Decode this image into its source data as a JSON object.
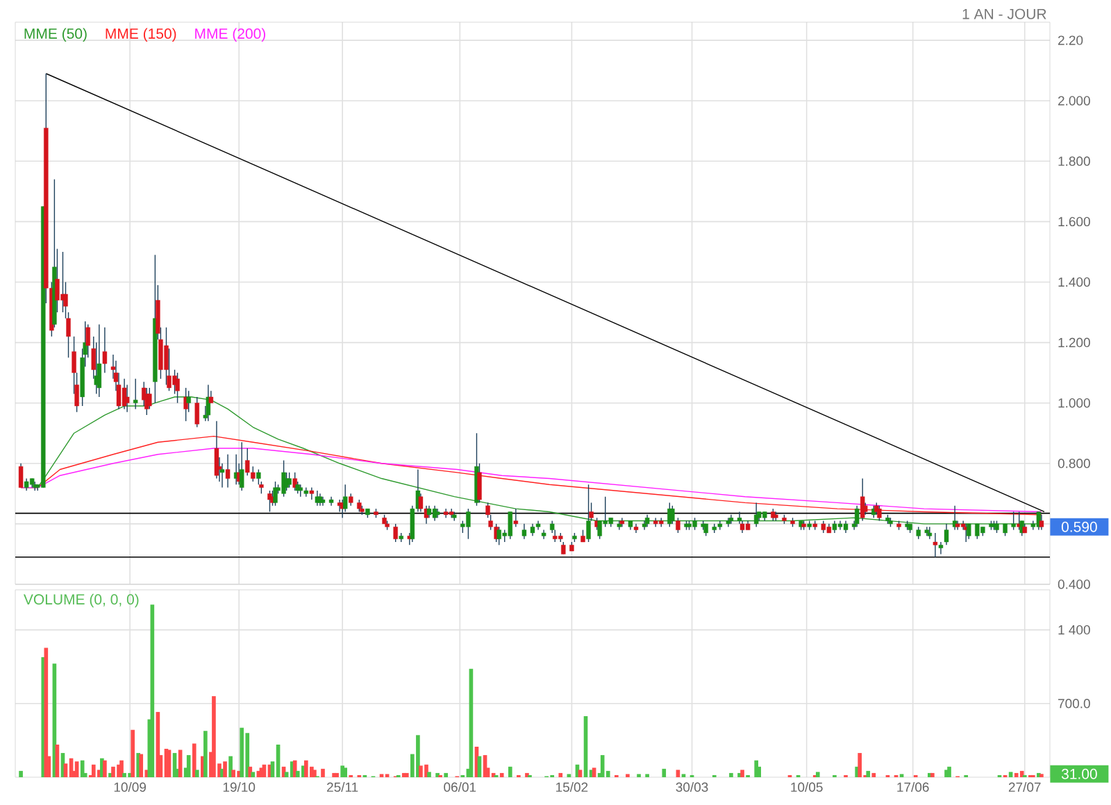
{
  "chart_data": [
    {
      "type": "candlestick",
      "subtitle": "1 AN - JOUR",
      "x": [
        "2010-08-02",
        "2010-08-04",
        "2010-08-06",
        "2010-08-07",
        "2010-08-08",
        "2010-08-10",
        "2010-08-11",
        "2010-08-13",
        "2010-08-14",
        "2010-08-15",
        "2010-08-17",
        "2010-08-18",
        "2010-08-19",
        "2010-08-21",
        "2010-08-22",
        "2010-08-24",
        "2010-08-25",
        "2010-08-26",
        "2010-08-28",
        "2010-08-29",
        "2010-08-30",
        "2010-09-01",
        "2010-09-04",
        "2010-09-05",
        "2010-09-06",
        "2010-09-08",
        "2010-09-09",
        "2010-09-12",
        "2010-09-15",
        "2010-09-16",
        "2010-09-17",
        "2010-09-19",
        "2010-09-20",
        "2010-09-21",
        "2010-09-23",
        "2010-09-24",
        "2010-09-26",
        "2010-09-27",
        "2010-09-30",
        "2010-10-01",
        "2010-10-04",
        "2010-10-07",
        "2010-10-08",
        "2010-10-09",
        "2010-10-11",
        "2010-10-12",
        "2010-10-13",
        "2010-10-15",
        "2010-10-18",
        "2010-10-19",
        "2010-10-20",
        "2010-10-22",
        "2010-10-24",
        "2010-10-26",
        "2010-10-27",
        "2010-10-30",
        "2010-10-31",
        "2010-11-01",
        "2010-11-02",
        "2010-11-04",
        "2010-11-05",
        "2010-11-06",
        "2010-11-08",
        "2010-11-09",
        "2010-11-10",
        "2010-11-12",
        "2010-11-14",
        "2010-11-16",
        "2010-11-17",
        "2010-11-18",
        "2010-11-21",
        "2010-11-24",
        "2010-11-25",
        "2010-11-26",
        "2010-11-28",
        "2010-12-01",
        "2010-12-02",
        "2010-12-04",
        "2010-12-07",
        "2010-12-10",
        "2010-12-11",
        "2010-12-14",
        "2010-12-16",
        "2010-12-19",
        "2010-12-20",
        "2010-12-22",
        "2010-12-23",
        "2010-12-25",
        "2010-12-26",
        "2010-12-28",
        "2010-12-29",
        "2011-01-01",
        "2011-01-03",
        "2011-01-04",
        "2011-01-07",
        "2011-01-09",
        "2011-01-12",
        "2011-01-13",
        "2011-01-16",
        "2011-01-17",
        "2011-01-19",
        "2011-01-20",
        "2011-01-22",
        "2011-01-24",
        "2011-01-26",
        "2011-01-29",
        "2011-02-01",
        "2011-02-03",
        "2011-02-05",
        "2011-02-08",
        "2011-02-09",
        "2011-02-11",
        "2011-02-12",
        "2011-02-15",
        "2011-02-16",
        "2011-02-19",
        "2011-02-21",
        "2011-02-22",
        "2011-02-24",
        "2011-02-25",
        "2011-02-27",
        "2011-03-01",
        "2011-03-04",
        "2011-03-05",
        "2011-03-08",
        "2011-03-10",
        "2011-03-13",
        "2011-03-14",
        "2011-03-17",
        "2011-03-19",
        "2011-03-22",
        "2011-03-23",
        "2011-03-25",
        "2011-03-28",
        "2011-03-29",
        "2011-03-31",
        "2011-04-03",
        "2011-04-04",
        "2011-04-07",
        "2011-04-09",
        "2011-04-12",
        "2011-04-13",
        "2011-04-16",
        "2011-04-17",
        "2011-04-19",
        "2011-04-22",
        "2011-04-23",
        "2011-04-25",
        "2011-04-28",
        "2011-04-29",
        "2011-05-02",
        "2011-05-05",
        "2011-05-08",
        "2011-05-09",
        "2011-05-11",
        "2011-05-13",
        "2011-05-16",
        "2011-05-18",
        "2011-05-20",
        "2011-05-22",
        "2011-05-24",
        "2011-05-27",
        "2011-05-28",
        "2011-05-30",
        "2011-05-31",
        "2011-06-03",
        "2011-06-04",
        "2011-06-05",
        "2011-06-08",
        "2011-06-09",
        "2011-06-12",
        "2011-06-15",
        "2011-06-16",
        "2011-06-19",
        "2011-06-22",
        "2011-06-23",
        "2011-06-25",
        "2011-06-27",
        "2011-06-29",
        "2011-07-02",
        "2011-07-03",
        "2011-07-05",
        "2011-07-06",
        "2011-07-07",
        "2011-07-10",
        "2011-07-12",
        "2011-07-15",
        "2011-07-16",
        "2011-07-17",
        "2011-07-20",
        "2011-07-23",
        "2011-07-25",
        "2011-07-26",
        "2011-07-27",
        "2011-07-30",
        "2011-08-01",
        "2011-08-02"
      ],
      "ohlc": [
        [
          0.79,
          0.8,
          0.72,
          0.72
        ],
        [
          0.72,
          0.75,
          0.71,
          0.74
        ],
        [
          0.73,
          0.75,
          0.72,
          0.75
        ],
        [
          0.72,
          0.74,
          0.71,
          0.73
        ],
        [
          0.72,
          0.73,
          0.71,
          0.73
        ],
        [
          0.72,
          1.65,
          0.72,
          1.65
        ],
        [
          1.91,
          2.09,
          1.33,
          1.38
        ],
        [
          1.38,
          1.4,
          1.22,
          1.24
        ],
        [
          1.26,
          1.74,
          1.25,
          1.45
        ],
        [
          1.41,
          1.51,
          1.3,
          1.34
        ],
        [
          1.36,
          1.5,
          1.3,
          1.34
        ],
        [
          1.36,
          1.4,
          1.28,
          1.32
        ],
        [
          1.28,
          1.3,
          1.15,
          1.22
        ],
        [
          1.17,
          1.22,
          1.03,
          1.1
        ],
        [
          1.06,
          1.1,
          0.97,
          0.99
        ],
        [
          1.02,
          1.18,
          0.99,
          1.15
        ],
        [
          1.16,
          1.27,
          1.12,
          1.2
        ],
        [
          1.25,
          1.26,
          1.15,
          1.19
        ],
        [
          1.18,
          1.22,
          1.08,
          1.11
        ],
        [
          1.06,
          1.2,
          1.03,
          1.09
        ],
        [
          1.05,
          1.26,
          1.02,
          1.13
        ],
        [
          1.17,
          1.25,
          1.1,
          1.13
        ],
        [
          1.12,
          1.16,
          1.08,
          1.11
        ],
        [
          1.1,
          1.14,
          1.04,
          1.07
        ],
        [
          1.06,
          1.1,
          0.98,
          0.99
        ],
        [
          1.05,
          1.08,
          0.98,
          0.99
        ],
        [
          1.02,
          1.06,
          0.97,
          1.0
        ],
        [
          1.0,
          1.08,
          0.98,
          1.01
        ],
        [
          1.05,
          1.07,
          0.99,
          1.01
        ],
        [
          1.03,
          1.05,
          0.96,
          0.98
        ],
        [
          1.03,
          1.05,
          0.98,
          0.99
        ],
        [
          1.07,
          1.49,
          1.0,
          1.28
        ],
        [
          1.34,
          1.39,
          1.21,
          1.23
        ],
        [
          1.21,
          1.25,
          1.08,
          1.11
        ],
        [
          1.19,
          1.25,
          1.06,
          1.11
        ],
        [
          1.09,
          1.18,
          1.04,
          1.05
        ],
        [
          1.09,
          1.11,
          1.03,
          1.06
        ],
        [
          1.08,
          1.1,
          1.0,
          1.04
        ],
        [
          1.02,
          1.05,
          0.94,
          0.98
        ],
        [
          1.0,
          1.04,
          0.97,
          1.02
        ],
        [
          1.0,
          1.02,
          0.92,
          0.93
        ],
        [
          0.95,
          0.99,
          0.94,
          0.96
        ],
        [
          0.96,
          1.06,
          0.94,
          1.02
        ],
        [
          1.02,
          1.04,
          1.0,
          1.0
        ],
        [
          0.85,
          0.94,
          0.75,
          0.76
        ],
        [
          0.79,
          0.82,
          0.74,
          0.78
        ],
        [
          0.77,
          0.8,
          0.72,
          0.78
        ],
        [
          0.78,
          0.83,
          0.72,
          0.75
        ],
        [
          0.75,
          0.83,
          0.73,
          0.77
        ],
        [
          0.77,
          0.8,
          0.73,
          0.74
        ],
        [
          0.72,
          0.87,
          0.71,
          0.78
        ],
        [
          0.81,
          0.85,
          0.76,
          0.77
        ],
        [
          0.77,
          0.79,
          0.74,
          0.75
        ],
        [
          0.75,
          0.78,
          0.73,
          0.77
        ],
        [
          0.73,
          0.74,
          0.7,
          0.72
        ],
        [
          0.7,
          0.71,
          0.64,
          0.68
        ],
        [
          0.69,
          0.71,
          0.66,
          0.67
        ],
        [
          0.67,
          0.74,
          0.66,
          0.72
        ],
        [
          0.71,
          0.73,
          0.7,
          0.72
        ],
        [
          0.7,
          0.81,
          0.69,
          0.77
        ],
        [
          0.72,
          0.77,
          0.71,
          0.75
        ],
        [
          0.73,
          0.77,
          0.72,
          0.75
        ],
        [
          0.75,
          0.77,
          0.71,
          0.72
        ],
        [
          0.71,
          0.74,
          0.7,
          0.73
        ],
        [
          0.71,
          0.73,
          0.69,
          0.72
        ],
        [
          0.7,
          0.72,
          0.69,
          0.71
        ],
        [
          0.71,
          0.72,
          0.68,
          0.7
        ],
        [
          0.67,
          0.71,
          0.66,
          0.69
        ],
        [
          0.67,
          0.7,
          0.66,
          0.69
        ],
        [
          0.67,
          0.69,
          0.66,
          0.68
        ],
        [
          0.67,
          0.69,
          0.66,
          0.68
        ],
        [
          0.67,
          0.68,
          0.64,
          0.66
        ],
        [
          0.67,
          0.68,
          0.62,
          0.65
        ],
        [
          0.65,
          0.73,
          0.64,
          0.69
        ],
        [
          0.69,
          0.7,
          0.66,
          0.67
        ],
        [
          0.67,
          0.68,
          0.64,
          0.65
        ],
        [
          0.65,
          0.66,
          0.63,
          0.64
        ],
        [
          0.63,
          0.65,
          0.62,
          0.65
        ],
        [
          0.64,
          0.65,
          0.62,
          0.63
        ],
        [
          0.62,
          0.63,
          0.6,
          0.6
        ],
        [
          0.6,
          0.61,
          0.58,
          0.59
        ],
        [
          0.59,
          0.6,
          0.54,
          0.55
        ],
        [
          0.55,
          0.57,
          0.54,
          0.56
        ],
        [
          0.56,
          0.57,
          0.53,
          0.55
        ],
        [
          0.55,
          0.66,
          0.54,
          0.65
        ],
        [
          0.65,
          0.78,
          0.64,
          0.71
        ],
        [
          0.69,
          0.7,
          0.64,
          0.65
        ],
        [
          0.65,
          0.66,
          0.6,
          0.62
        ],
        [
          0.63,
          0.66,
          0.62,
          0.65
        ],
        [
          0.62,
          0.66,
          0.61,
          0.65
        ],
        [
          0.63,
          0.65,
          0.62,
          0.64
        ],
        [
          0.64,
          0.65,
          0.62,
          0.63
        ],
        [
          0.64,
          0.65,
          0.62,
          0.63
        ],
        [
          0.62,
          0.64,
          0.61,
          0.63
        ],
        [
          0.59,
          0.61,
          0.57,
          0.6
        ],
        [
          0.59,
          0.65,
          0.55,
          0.64
        ],
        [
          0.67,
          0.9,
          0.66,
          0.79
        ],
        [
          0.77,
          0.8,
          0.67,
          0.68
        ],
        [
          0.66,
          0.67,
          0.62,
          0.63
        ],
        [
          0.61,
          0.63,
          0.58,
          0.59
        ],
        [
          0.59,
          0.6,
          0.54,
          0.55
        ],
        [
          0.55,
          0.59,
          0.53,
          0.58
        ],
        [
          0.56,
          0.58,
          0.54,
          0.57
        ],
        [
          0.56,
          0.64,
          0.55,
          0.64
        ],
        [
          0.61,
          0.65,
          0.59,
          0.6
        ],
        [
          0.56,
          0.6,
          0.55,
          0.58
        ],
        [
          0.57,
          0.6,
          0.56,
          0.59
        ],
        [
          0.59,
          0.61,
          0.58,
          0.6
        ],
        [
          0.56,
          0.58,
          0.55,
          0.57
        ],
        [
          0.58,
          0.61,
          0.57,
          0.6
        ],
        [
          0.56,
          0.58,
          0.54,
          0.55
        ],
        [
          0.56,
          0.57,
          0.54,
          0.55
        ],
        [
          0.53,
          0.54,
          0.5,
          0.5
        ],
        [
          0.53,
          0.54,
          0.51,
          0.51
        ],
        [
          0.55,
          0.57,
          0.54,
          0.56
        ],
        [
          0.56,
          0.58,
          0.54,
          0.54
        ],
        [
          0.55,
          0.73,
          0.54,
          0.61
        ],
        [
          0.64,
          0.67,
          0.61,
          0.62
        ],
        [
          0.61,
          0.62,
          0.58,
          0.59
        ],
        [
          0.56,
          0.61,
          0.55,
          0.61
        ],
        [
          0.6,
          0.69,
          0.59,
          0.61
        ],
        [
          0.6,
          0.62,
          0.59,
          0.62
        ],
        [
          0.59,
          0.61,
          0.58,
          0.6
        ],
        [
          0.61,
          0.62,
          0.59,
          0.6
        ],
        [
          0.59,
          0.61,
          0.58,
          0.61
        ],
        [
          0.59,
          0.6,
          0.57,
          0.58
        ],
        [
          0.59,
          0.61,
          0.58,
          0.6
        ],
        [
          0.6,
          0.63,
          0.59,
          0.62
        ],
        [
          0.61,
          0.62,
          0.59,
          0.6
        ],
        [
          0.61,
          0.62,
          0.59,
          0.6
        ],
        [
          0.6,
          0.67,
          0.59,
          0.65
        ],
        [
          0.61,
          0.66,
          0.6,
          0.65
        ],
        [
          0.61,
          0.62,
          0.57,
          0.58
        ],
        [
          0.59,
          0.61,
          0.58,
          0.6
        ],
        [
          0.59,
          0.61,
          0.58,
          0.6
        ],
        [
          0.59,
          0.62,
          0.58,
          0.61
        ],
        [
          0.59,
          0.61,
          0.58,
          0.6
        ],
        [
          0.57,
          0.6,
          0.56,
          0.6
        ],
        [
          0.58,
          0.6,
          0.57,
          0.59
        ],
        [
          0.59,
          0.61,
          0.58,
          0.6
        ],
        [
          0.6,
          0.62,
          0.59,
          0.61
        ],
        [
          0.61,
          0.63,
          0.6,
          0.62
        ],
        [
          0.61,
          0.64,
          0.6,
          0.62
        ],
        [
          0.6,
          0.61,
          0.57,
          0.58
        ],
        [
          0.6,
          0.61,
          0.58,
          0.58
        ],
        [
          0.6,
          0.67,
          0.59,
          0.63
        ],
        [
          0.62,
          0.64,
          0.61,
          0.64
        ],
        [
          0.62,
          0.64,
          0.61,
          0.64
        ],
        [
          0.64,
          0.65,
          0.61,
          0.62
        ],
        [
          0.63,
          0.64,
          0.61,
          0.62
        ],
        [
          0.62,
          0.63,
          0.6,
          0.61
        ],
        [
          0.61,
          0.62,
          0.59,
          0.6
        ],
        [
          0.59,
          0.61,
          0.58,
          0.61
        ],
        [
          0.6,
          0.61,
          0.58,
          0.59
        ],
        [
          0.59,
          0.61,
          0.58,
          0.6
        ],
        [
          0.6,
          0.61,
          0.58,
          0.59
        ],
        [
          0.6,
          0.61,
          0.57,
          0.58
        ],
        [
          0.59,
          0.6,
          0.57,
          0.57
        ],
        [
          0.58,
          0.61,
          0.57,
          0.6
        ],
        [
          0.59,
          0.61,
          0.58,
          0.6
        ],
        [
          0.58,
          0.61,
          0.57,
          0.6
        ],
        [
          0.59,
          0.61,
          0.58,
          0.6
        ],
        [
          0.6,
          0.66,
          0.59,
          0.65
        ],
        [
          0.69,
          0.75,
          0.61,
          0.62
        ],
        [
          0.66,
          0.67,
          0.63,
          0.64
        ],
        [
          0.63,
          0.66,
          0.62,
          0.65
        ],
        [
          0.66,
          0.67,
          0.63,
          0.64
        ],
        [
          0.65,
          0.66,
          0.61,
          0.62
        ],
        [
          0.61,
          0.63,
          0.6,
          0.62
        ],
        [
          0.6,
          0.62,
          0.59,
          0.61
        ],
        [
          0.6,
          0.61,
          0.58,
          0.59
        ],
        [
          0.59,
          0.61,
          0.58,
          0.6
        ],
        [
          0.58,
          0.6,
          0.57,
          0.6
        ],
        [
          0.56,
          0.59,
          0.55,
          0.58
        ],
        [
          0.57,
          0.59,
          0.56,
          0.58
        ],
        [
          0.56,
          0.59,
          0.55,
          0.57
        ],
        [
          0.54,
          0.57,
          0.49,
          0.53
        ],
        [
          0.52,
          0.54,
          0.5,
          0.53
        ],
        [
          0.54,
          0.6,
          0.53,
          0.58
        ],
        [
          0.59,
          0.66,
          0.58,
          0.61
        ],
        [
          0.6,
          0.61,
          0.58,
          0.59
        ],
        [
          0.6,
          0.61,
          0.58,
          0.59
        ],
        [
          0.59,
          0.6,
          0.54,
          0.58
        ],
        [
          0.56,
          0.6,
          0.55,
          0.6
        ],
        [
          0.56,
          0.6,
          0.55,
          0.6
        ],
        [
          0.57,
          0.59,
          0.56,
          0.59
        ],
        [
          0.59,
          0.61,
          0.58,
          0.6
        ],
        [
          0.59,
          0.61,
          0.58,
          0.6
        ],
        [
          0.58,
          0.61,
          0.57,
          0.6
        ],
        [
          0.57,
          0.6,
          0.56,
          0.6
        ],
        [
          0.59,
          0.64,
          0.58,
          0.6
        ],
        [
          0.6,
          0.64,
          0.58,
          0.59
        ],
        [
          0.57,
          0.61,
          0.56,
          0.61
        ],
        [
          0.59,
          0.6,
          0.57,
          0.57
        ],
        [
          0.59,
          0.61,
          0.58,
          0.6
        ],
        [
          0.59,
          0.64,
          0.58,
          0.64
        ],
        [
          0.61,
          0.63,
          0.58,
          0.59
        ]
      ],
      "colors": [
        "#d4141c",
        "#1a8f1a",
        "#1a8f1a",
        "#1a8f1a",
        "#1a8f1a",
        "#1a8f1a",
        "#d4141c",
        "#d4141c",
        "#1a8f1a",
        "#d4141c",
        "#d4141c",
        "#d4141c",
        "#d4141c",
        "#d4141c",
        "#d4141c",
        "#1a8f1a",
        "#1a8f1a",
        "#d4141c",
        "#d4141c",
        "#1a8f1a",
        "#1a8f1a",
        "#d4141c",
        "#d4141c",
        "#d4141c",
        "#d4141c",
        "#d4141c",
        "#d4141c",
        "#1a8f1a",
        "#d4141c",
        "#d4141c",
        "#d4141c",
        "#1a8f1a",
        "#d4141c",
        "#d4141c",
        "#d4141c",
        "#d4141c",
        "#d4141c",
        "#d4141c",
        "#d4141c",
        "#1a8f1a",
        "#d4141c",
        "#1a8f1a",
        "#1a8f1a",
        "#d4141c",
        "#d4141c",
        "#d4141c",
        "#1a8f1a",
        "#d4141c",
        "#1a8f1a",
        "#d4141c",
        "#1a8f1a",
        "#d4141c",
        "#d4141c",
        "#1a8f1a",
        "#d4141c",
        "#d4141c",
        "#d4141c",
        "#1a8f1a",
        "#1a8f1a",
        "#1a8f1a",
        "#1a8f1a",
        "#1a8f1a",
        "#d4141c",
        "#1a8f1a",
        "#1a8f1a",
        "#1a8f1a",
        "#d4141c",
        "#1a8f1a",
        "#1a8f1a",
        "#1a8f1a",
        "#1a8f1a",
        "#d4141c",
        "#d4141c",
        "#1a8f1a",
        "#d4141c",
        "#d4141c",
        "#d4141c",
        "#1a8f1a",
        "#d4141c",
        "#d4141c",
        "#d4141c",
        "#d4141c",
        "#1a8f1a",
        "#d4141c",
        "#1a8f1a",
        "#1a8f1a",
        "#d4141c",
        "#d4141c",
        "#1a8f1a",
        "#1a8f1a",
        "#1a8f1a",
        "#d4141c",
        "#d4141c",
        "#1a8f1a",
        "#1a8f1a",
        "#1a8f1a",
        "#1a8f1a",
        "#d4141c",
        "#d4141c",
        "#d4141c",
        "#d4141c",
        "#1a8f1a",
        "#1a8f1a",
        "#1a8f1a",
        "#d4141c",
        "#1a8f1a",
        "#1a8f1a",
        "#1a8f1a",
        "#1a8f1a",
        "#1a8f1a",
        "#d4141c",
        "#d4141c",
        "#d4141c",
        "#d4141c",
        "#1a8f1a",
        "#d4141c",
        "#1a8f1a",
        "#d4141c",
        "#d4141c",
        "#1a8f1a",
        "#1a8f1a",
        "#1a8f1a",
        "#1a8f1a",
        "#d4141c",
        "#1a8f1a",
        "#d4141c",
        "#1a8f1a",
        "#1a8f1a",
        "#d4141c",
        "#d4141c",
        "#1a8f1a",
        "#1a8f1a",
        "#d4141c",
        "#1a8f1a",
        "#1a8f1a",
        "#1a8f1a",
        "#1a8f1a",
        "#1a8f1a",
        "#1a8f1a",
        "#1a8f1a",
        "#1a8f1a",
        "#1a8f1a",
        "#1a8f1a",
        "#d4141c",
        "#d4141c",
        "#1a8f1a",
        "#1a8f1a",
        "#1a8f1a",
        "#d4141c",
        "#d4141c",
        "#d4141c",
        "#d4141c",
        "#1a8f1a",
        "#d4141c",
        "#1a8f1a",
        "#d4141c",
        "#d4141c",
        "#d4141c",
        "#1a8f1a",
        "#1a8f1a",
        "#1a8f1a",
        "#1a8f1a",
        "#1a8f1a",
        "#d4141c",
        "#d4141c",
        "#1a8f1a",
        "#d4141c",
        "#d4141c",
        "#1a8f1a",
        "#1a8f1a",
        "#d4141c",
        "#1a8f1a",
        "#1a8f1a",
        "#1a8f1a",
        "#1a8f1a",
        "#1a8f1a",
        "#d4141c",
        "#1a8f1a",
        "#1a8f1a",
        "#1a8f1a",
        "#d4141c",
        "#d4141c",
        "#d4141c",
        "#1a8f1a",
        "#1a8f1a",
        "#1a8f1a",
        "#1a8f1a",
        "#1a8f1a",
        "#1a8f1a",
        "#1a8f1a",
        "#1a8f1a",
        "#d4141c",
        "#1a8f1a",
        "#d4141c",
        "#1a8f1a",
        "#1a8f1a",
        "#d4141c"
      ],
      "series": [
        {
          "name": "MME (50)",
          "type": "line",
          "color": "#2e9a2e",
          "x": [
            "2010-08-02",
            "2010-08-08",
            "2010-08-11",
            "2010-08-21",
            "2010-09-01",
            "2010-09-08",
            "2010-09-16",
            "2010-09-19",
            "2010-09-26",
            "2010-10-02",
            "2010-10-09",
            "2010-10-15",
            "2010-10-24",
            "2010-11-02",
            "2010-11-11",
            "2010-11-24",
            "2010-12-09",
            "2010-12-22",
            "2011-01-04",
            "2011-01-15",
            "2011-01-26",
            "2011-02-07",
            "2011-02-24",
            "2011-04-01",
            "2011-05-05",
            "2011-05-27",
            "2011-06-21",
            "2011-07-08",
            "2011-08-02"
          ],
          "values": [
            0.72,
            0.72,
            0.76,
            0.9,
            0.96,
            0.99,
            0.99,
            1.0,
            1.02,
            1.02,
            1.01,
            0.98,
            0.92,
            0.88,
            0.85,
            0.8,
            0.75,
            0.72,
            0.69,
            0.67,
            0.65,
            0.64,
            0.61,
            0.61,
            0.61,
            0.62,
            0.6,
            0.6,
            0.6
          ]
        },
        {
          "name": "MME (150)",
          "type": "line",
          "color": "#ff2020",
          "x": [
            "2010-08-02",
            "2010-08-08",
            "2010-08-16",
            "2010-09-04",
            "2010-09-20",
            "2010-10-10",
            "2010-10-24",
            "2010-11-14",
            "2010-12-09",
            "2011-01-05",
            "2011-01-21",
            "2011-02-07",
            "2011-03-14",
            "2011-04-18",
            "2011-05-21",
            "2011-06-21",
            "2011-08-02"
          ],
          "values": [
            0.72,
            0.72,
            0.78,
            0.83,
            0.87,
            0.89,
            0.87,
            0.84,
            0.8,
            0.77,
            0.75,
            0.73,
            0.7,
            0.67,
            0.65,
            0.64,
            0.63
          ]
        },
        {
          "name": "MME (200)",
          "type": "line",
          "color": "#ff20ff",
          "x": [
            "2010-08-02",
            "2010-08-08",
            "2010-08-16",
            "2010-09-04",
            "2010-09-20",
            "2010-10-10",
            "2010-10-24",
            "2010-11-14",
            "2010-12-09",
            "2011-01-05",
            "2011-01-21",
            "2011-02-07",
            "2011-03-14",
            "2011-04-18",
            "2011-05-21",
            "2011-06-21",
            "2011-08-02"
          ],
          "values": [
            0.72,
            0.72,
            0.76,
            0.8,
            0.83,
            0.85,
            0.85,
            0.83,
            0.8,
            0.78,
            0.76,
            0.75,
            0.72,
            0.69,
            0.67,
            0.65,
            0.64
          ]
        },
        {
          "type": "line",
          "color": "#000000",
          "x": [
            "2010-08-11",
            "2011-08-03"
          ],
          "values": [
            2.09,
            0.64
          ]
        }
      ],
      "ref_lines": [
        {
          "axis": "y",
          "value": 0.635,
          "color": "#000000"
        },
        {
          "axis": "y",
          "value": 0.49,
          "color": "#000000"
        }
      ],
      "annotations": [
        "0.590"
      ],
      "xlim": [
        "2010-07-31",
        "2011-08-05"
      ],
      "xticks": [
        "2010-09-10",
        "2010-10-19",
        "2010-11-25",
        "2011-01-06",
        "2011-02-15",
        "2011-03-30",
        "2011-05-10",
        "2011-06-17",
        "2011-07-27"
      ],
      "ylim": [
        0.4,
        2.26
      ],
      "yticks": [
        {
          "value": 2.2,
          "label": "2.20"
        },
        {
          "value": 2.0,
          "label": "2.000"
        },
        {
          "value": 1.8,
          "label": "1.800"
        },
        {
          "value": 1.6,
          "label": "1.600"
        },
        {
          "value": 1.4,
          "label": "1.400"
        },
        {
          "value": 1.2,
          "label": "1.200"
        },
        {
          "value": 1.0,
          "label": "1.000"
        },
        {
          "value": 0.8,
          "label": "0.800"
        },
        {
          "value": 0.6,
          "label": null
        },
        {
          "value": 0.4,
          "label": "0.400"
        }
      ],
      "tick_labels": "y",
      "grid": true,
      "legend": "top left"
    },
    {
      "type": "bar",
      "title": "VOLUME (0, 0, 0)",
      "x": [
        "2010-08-02",
        "2010-08-10",
        "2010-08-11",
        "2010-08-12",
        "2010-08-14",
        "2010-08-15",
        "2010-08-17",
        "2010-08-18",
        "2010-08-20",
        "2010-08-21",
        "2010-08-22",
        "2010-08-24",
        "2010-08-25",
        "2010-08-27",
        "2010-08-28",
        "2010-08-30",
        "2010-08-31",
        "2010-09-01",
        "2010-09-03",
        "2010-09-04",
        "2010-09-06",
        "2010-09-07",
        "2010-09-08",
        "2010-09-10",
        "2010-09-11",
        "2010-09-13",
        "2010-09-14",
        "2010-09-16",
        "2010-09-17",
        "2010-09-18",
        "2010-09-20",
        "2010-09-21",
        "2010-09-23",
        "2010-09-24",
        "2010-09-26",
        "2010-09-27",
        "2010-09-28",
        "2010-09-30",
        "2010-10-01",
        "2010-10-03",
        "2010-10-04",
        "2010-10-06",
        "2010-10-07",
        "2010-10-09",
        "2010-10-10",
        "2010-10-12",
        "2010-10-13",
        "2010-10-14",
        "2010-10-16",
        "2010-10-17",
        "2010-10-19",
        "2010-10-20",
        "2010-10-22",
        "2010-10-23",
        "2010-10-24",
        "2010-10-26",
        "2010-10-27",
        "2010-10-28",
        "2010-10-30",
        "2010-10-31",
        "2010-11-02",
        "2010-11-04",
        "2010-11-05",
        "2010-11-07",
        "2010-11-08",
        "2010-11-09",
        "2010-11-11",
        "2010-11-12",
        "2010-11-14",
        "2010-11-15",
        "2010-11-16",
        "2010-11-18",
        "2010-11-22",
        "2010-11-23",
        "2010-11-25",
        "2010-11-26",
        "2010-11-28",
        "2010-12-01",
        "2010-12-03",
        "2010-12-06",
        "2010-12-09",
        "2010-12-11",
        "2010-12-14",
        "2010-12-15",
        "2010-12-17",
        "2010-12-18",
        "2010-12-20",
        "2010-12-22",
        "2010-12-23",
        "2010-12-25",
        "2010-12-26",
        "2010-12-29",
        "2010-12-30",
        "2011-01-01",
        "2011-01-05",
        "2011-01-07",
        "2011-01-09",
        "2011-01-10",
        "2011-01-12",
        "2011-01-13",
        "2011-01-15",
        "2011-01-16",
        "2011-01-18",
        "2011-01-19",
        "2011-01-21",
        "2011-01-24",
        "2011-01-27",
        "2011-01-30",
        "2011-01-31",
        "2011-02-06",
        "2011-02-08",
        "2011-02-11",
        "2011-02-14",
        "2011-02-17",
        "2011-02-18",
        "2011-02-20",
        "2011-02-22",
        "2011-02-23",
        "2011-02-25",
        "2011-02-26",
        "2011-02-28",
        "2011-03-03",
        "2011-03-07",
        "2011-03-11",
        "2011-03-14",
        "2011-03-20",
        "2011-03-25",
        "2011-03-27",
        "2011-03-30",
        "2011-04-07",
        "2011-04-13",
        "2011-04-16",
        "2011-04-17",
        "2011-04-19",
        "2011-04-22",
        "2011-04-23",
        "2011-05-04",
        "2011-05-07",
        "2011-05-13",
        "2011-05-14",
        "2011-05-20",
        "2011-05-24",
        "2011-05-28",
        "2011-05-29",
        "2011-05-31",
        "2011-06-01",
        "2011-06-03",
        "2011-06-08",
        "2011-06-11",
        "2011-06-13",
        "2011-06-18",
        "2011-06-23",
        "2011-06-24",
        "2011-06-29",
        "2011-06-30",
        "2011-07-03",
        "2011-07-06",
        "2011-07-18",
        "2011-07-20",
        "2011-07-22",
        "2011-07-24",
        "2011-07-26",
        "2011-07-27",
        "2011-07-29",
        "2011-07-30",
        "2011-08-01",
        "2011-08-02"
      ],
      "values": [
        60,
        1140,
        1230,
        200,
        1080,
        310,
        230,
        130,
        180,
        60,
        150,
        160,
        40,
        20,
        120,
        70,
        180,
        160,
        40,
        100,
        120,
        160,
        40,
        40,
        450,
        230,
        220,
        70,
        550,
        1640,
        620,
        210,
        270,
        260,
        230,
        80,
        260,
        90,
        210,
        320,
        70,
        200,
        440,
        240,
        770,
        130,
        80,
        150,
        200,
        70,
        60,
        470,
        420,
        100,
        50,
        60,
        90,
        120,
        120,
        150,
        310,
        100,
        50,
        150,
        160,
        60,
        110,
        160,
        100,
        70,
        10,
        80,
        40,
        40,
        110,
        90,
        20,
        20,
        20,
        10,
        30,
        30,
        10,
        20,
        40,
        40,
        220,
        400,
        110,
        120,
        50,
        40,
        20,
        40,
        10,
        20,
        80,
        1030,
        290,
        200,
        210,
        90,
        40,
        20,
        40,
        100,
        20,
        40,
        20,
        10,
        20,
        40,
        30,
        120,
        70,
        580,
        70,
        90,
        40,
        210,
        60,
        20,
        30,
        30,
        30,
        80,
        70,
        30,
        20,
        20,
        40,
        40,
        70,
        20,
        160,
        100,
        20,
        20,
        20,
        50,
        20,
        20,
        100,
        230,
        20,
        60,
        40,
        20,
        20,
        30,
        20,
        40,
        40,
        70,
        100,
        10,
        20,
        20,
        20,
        50,
        40,
        60,
        20,
        20,
        20,
        40,
        31
      ],
      "colors": [
        "#4cc44c",
        "#4cc44c",
        "#ff4c4c",
        "#ff4c4c",
        "#4cc44c",
        "#ff4c4c",
        "#4cc44c",
        "#ff4c4c",
        "#ff4c4c",
        "#ff4c4c",
        "#ff4c4c",
        "#4cc44c",
        "#4cc44c",
        "#ff4c4c",
        "#ff4c4c",
        "#ff4c4c",
        "#4cc44c",
        "#ff4c4c",
        "#4cc44c",
        "#ff4c4c",
        "#ff4c4c",
        "#ff4c4c",
        "#4cc44c",
        "#4cc44c",
        "#ff4c4c",
        "#4cc44c",
        "#ff4c4c",
        "#ff4c4c",
        "#4cc44c",
        "#4cc44c",
        "#ff4c4c",
        "#ff4c4c",
        "#ff4c4c",
        "#ff4c4c",
        "#4cc44c",
        "#4cc44c",
        "#ff4c4c",
        "#4cc44c",
        "#4cc44c",
        "#ff4c4c",
        "#4cc44c",
        "#ff4c4c",
        "#4cc44c",
        "#ff4c4c",
        "#ff4c4c",
        "#ff4c4c",
        "#4cc44c",
        "#ff4c4c",
        "#4cc44c",
        "#ff4c4c",
        "#ff4c4c",
        "#4cc44c",
        "#4cc44c",
        "#ff4c4c",
        "#4cc44c",
        "#ff4c4c",
        "#ff4c4c",
        "#ff4c4c",
        "#ff4c4c",
        "#4cc44c",
        "#4cc44c",
        "#ff4c4c",
        "#4cc44c",
        "#4cc44c",
        "#ff4c4c",
        "#4cc44c",
        "#4cc44c",
        "#ff4c4c",
        "#ff4c4c",
        "#ff4c4c",
        "#4cc44c",
        "#ff4c4c",
        "#ff4c4c",
        "#ff4c4c",
        "#4cc44c",
        "#4cc44c",
        "#ff4c4c",
        "#ff4c4c",
        "#4cc44c",
        "#4cc44c",
        "#ff4c4c",
        "#ff4c4c",
        "#ff4c4c",
        "#4cc44c",
        "#ff4c4c",
        "#ff4c4c",
        "#4cc44c",
        "#4cc44c",
        "#ff4c4c",
        "#ff4c4c",
        "#4cc44c",
        "#4cc44c",
        "#ff4c4c",
        "#4cc44c",
        "#ff4c4c",
        "#4cc44c",
        "#4cc44c",
        "#4cc44c",
        "#ff4c4c",
        "#4cc44c",
        "#ff4c4c",
        "#ff4c4c",
        "#ff4c4c",
        "#4cc44c",
        "#ff4c4c",
        "#4cc44c",
        "#ff4c4c",
        "#ff4c4c",
        "#4cc44c",
        "#4cc44c",
        "#4cc44c",
        "#ff4c4c",
        "#4cc44c",
        "#4cc44c",
        "#ff4c4c",
        "#4cc44c",
        "#4cc44c",
        "#ff4c4c",
        "#4cc44c",
        "#4cc44c",
        "#4cc44c",
        "#ff4c4c",
        "#ff4c4c",
        "#4cc44c",
        "#4cc44c",
        "#4cc44c",
        "#ff4c4c",
        "#4cc44c",
        "#4cc44c",
        "#4cc44c",
        "#4cc44c",
        "#4cc44c",
        "#ff4c4c",
        "#4cc44c",
        "#4cc44c",
        "#4cc44c",
        "#ff4c4c",
        "#4cc44c",
        "#ff4c4c",
        "#4cc44c",
        "#4cc44c",
        "#ff4c4c",
        "#4cc44c",
        "#ff4c4c",
        "#ff4c4c",
        "#4cc44c",
        "#ff4c4c",
        "#ff4c4c",
        "#ff4c4c",
        "#4cc44c",
        "#ff4c4c",
        "#4cc44c",
        "#ff4c4c",
        "#4cc44c",
        "#4cc44c",
        "#ff4c4c",
        "#4cc44c",
        "#4cc44c",
        "#ff4c4c",
        "#4cc44c",
        "#ff4c4c",
        "#ff4c4c",
        "#4cc44c",
        "#ff4c4c",
        "#ff4c4c",
        "#4cc44c",
        "#ff4c4c"
      ],
      "annotations": [
        "31.00"
      ],
      "xlim": [
        "2010-07-31",
        "2011-08-05"
      ],
      "xticks": [
        {
          "value": "2010-09-10",
          "label": "10/09"
        },
        {
          "value": "2010-10-19",
          "label": "19/10"
        },
        {
          "value": "2010-11-25",
          "label": "25/11"
        },
        {
          "value": "2011-01-06",
          "label": "06/01"
        },
        {
          "value": "2011-02-15",
          "label": "15/02"
        },
        {
          "value": "2011-03-30",
          "label": "30/03"
        },
        {
          "value": "2011-05-10",
          "label": "10/05"
        },
        {
          "value": "2011-06-17",
          "label": "17/06"
        },
        {
          "value": "2011-07-27",
          "label": "27/07"
        }
      ],
      "ylim": [
        0,
        1780
      ],
      "yticks": [
        {
          "value": 1400,
          "label": "1 400"
        },
        {
          "value": 700,
          "label": "700.0"
        }
      ],
      "grid": true
    }
  ]
}
